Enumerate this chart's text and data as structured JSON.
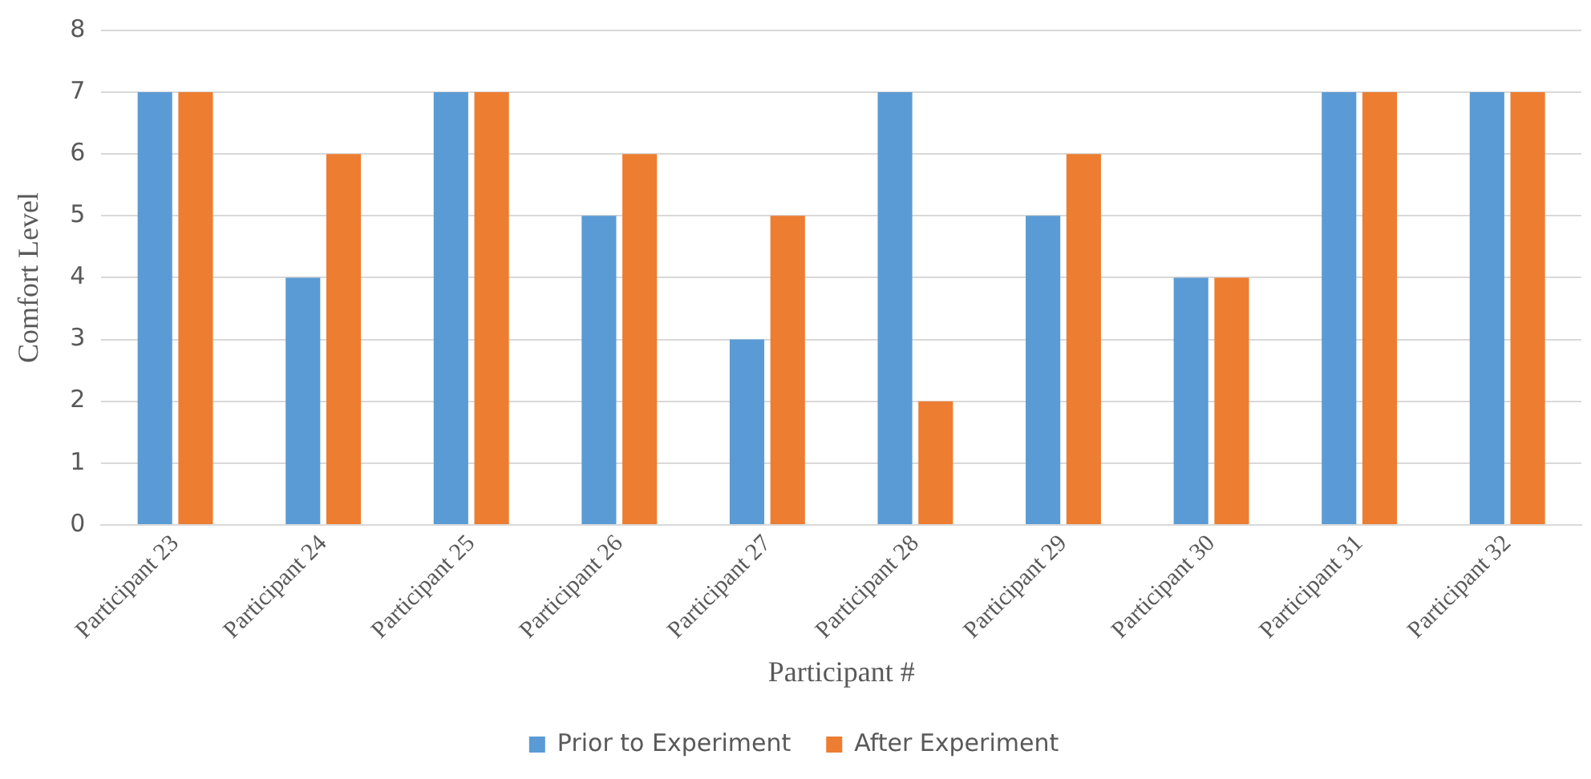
{
  "chart_data": {
    "type": "bar",
    "xlabel": "Participant #",
    "ylabel": "Comfort Level",
    "categories": [
      "Participant 23",
      "Participant 24",
      "Participant 25",
      "Participant 26",
      "Participant 27",
      "Participant 28",
      "Participant 29",
      "Participant 30",
      "Participant 31",
      "Participant 32"
    ],
    "series": [
      {
        "name": "Prior to Experiment",
        "color": "#5b9bd5",
        "values": [
          7,
          4,
          7,
          5,
          3,
          7,
          5,
          4,
          7,
          7
        ]
      },
      {
        "name": "After Experiment",
        "color": "#ed7d31",
        "values": [
          7,
          6,
          7,
          6,
          5,
          2,
          6,
          4,
          7,
          7
        ]
      }
    ],
    "ylim": [
      0,
      8
    ],
    "yticks": [
      0,
      1,
      2,
      3,
      4,
      5,
      6,
      7,
      8
    ],
    "grid": "y",
    "legend": "bottom"
  }
}
